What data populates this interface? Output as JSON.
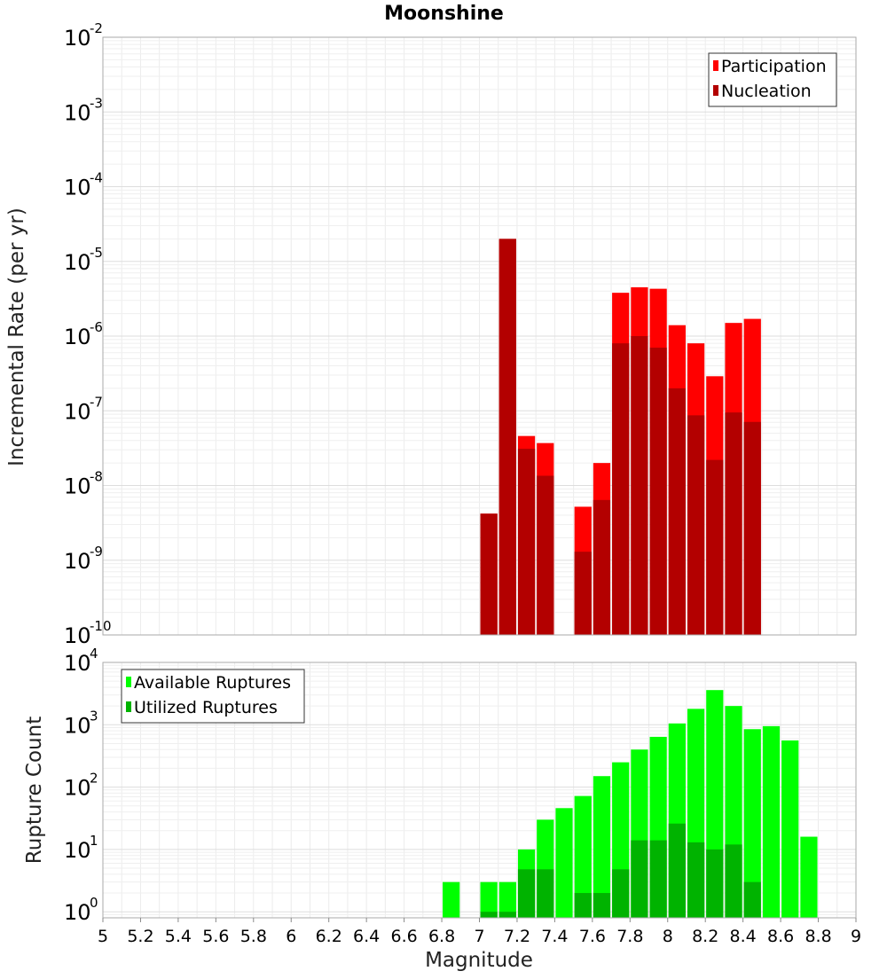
{
  "chart_data": [
    {
      "type": "bar",
      "title": "Moonshine",
      "ylabel": "Incremental Rate (per yr)",
      "xlabel": "",
      "xlim": [
        5,
        9
      ],
      "ylim": [
        1e-10,
        0.01
      ],
      "yscale": "log",
      "grid": true,
      "legend_position": "top-right",
      "bin_width": 0.1,
      "y_ticks": [
        {
          "base": "10",
          "exp": "-10"
        },
        {
          "base": "10",
          "exp": "-9"
        },
        {
          "base": "10",
          "exp": "-8"
        },
        {
          "base": "10",
          "exp": "-7"
        },
        {
          "base": "10",
          "exp": "-6"
        },
        {
          "base": "10",
          "exp": "-5"
        },
        {
          "base": "10",
          "exp": "-4"
        },
        {
          "base": "10",
          "exp": "-3"
        },
        {
          "base": "10",
          "exp": "-2"
        }
      ],
      "series": [
        {
          "name": "Participation",
          "color": "#ff0000",
          "points": [
            [
              7.05,
              4.2e-09
            ],
            [
              7.15,
              2e-05
            ],
            [
              7.25,
              4.6e-08
            ],
            [
              7.35,
              3.7e-08
            ],
            [
              7.55,
              5.2e-09
            ],
            [
              7.65,
              2e-08
            ],
            [
              7.75,
              3.8e-06
            ],
            [
              7.85,
              4.5e-06
            ],
            [
              7.95,
              4.3e-06
            ],
            [
              8.05,
              1.4e-06
            ],
            [
              8.15,
              8e-07
            ],
            [
              8.25,
              2.9e-07
            ],
            [
              8.35,
              1.5e-06
            ],
            [
              8.45,
              1.7e-06
            ]
          ]
        },
        {
          "name": "Nucleation",
          "color": "#b30000",
          "points": [
            [
              7.05,
              4.2e-09
            ],
            [
              7.15,
              2e-05
            ],
            [
              7.25,
              3.1e-08
            ],
            [
              7.35,
              1.35e-08
            ],
            [
              7.55,
              1.3e-09
            ],
            [
              7.65,
              6.4e-09
            ],
            [
              7.75,
              8e-07
            ],
            [
              7.85,
              1e-06
            ],
            [
              7.95,
              7e-07
            ],
            [
              8.05,
              2e-07
            ],
            [
              8.15,
              8.7e-08
            ],
            [
              8.25,
              2.2e-08
            ],
            [
              8.35,
              9.5e-08
            ],
            [
              8.45,
              7.1e-08
            ]
          ]
        }
      ]
    },
    {
      "type": "bar",
      "title": "",
      "ylabel": "Rupture Count",
      "xlabel": "Magnitude",
      "xlim": [
        5,
        9
      ],
      "ylim": [
        0.8,
        10000
      ],
      "yscale": "log",
      "grid": true,
      "legend_position": "top-left",
      "bin_width": 0.1,
      "x_ticks": [
        "5",
        "5.2",
        "5.4",
        "5.6",
        "5.8",
        "6",
        "6.2",
        "6.4",
        "6.6",
        "6.8",
        "7",
        "7.2",
        "7.4",
        "7.6",
        "7.8",
        "8",
        "8.2",
        "8.4",
        "8.6",
        "8.8",
        "9"
      ],
      "y_ticks": [
        {
          "base": "10",
          "exp": "0"
        },
        {
          "base": "10",
          "exp": "1"
        },
        {
          "base": "10",
          "exp": "2"
        },
        {
          "base": "10",
          "exp": "3"
        },
        {
          "base": "10",
          "exp": "4"
        }
      ],
      "series": [
        {
          "name": "Available Ruptures",
          "color": "#00ff00",
          "points": [
            [
              6.85,
              3
            ],
            [
              7.05,
              3
            ],
            [
              7.15,
              3
            ],
            [
              7.25,
              10
            ],
            [
              7.35,
              30
            ],
            [
              7.45,
              46
            ],
            [
              7.55,
              72
            ],
            [
              7.65,
              150
            ],
            [
              7.75,
              250
            ],
            [
              7.85,
              400
            ],
            [
              7.95,
              640
            ],
            [
              8.05,
              1050
            ],
            [
              8.15,
              1800
            ],
            [
              8.25,
              3600
            ],
            [
              8.35,
              2000
            ],
            [
              8.45,
              850
            ],
            [
              8.55,
              950
            ],
            [
              8.65,
              560
            ],
            [
              8.75,
              16
            ]
          ]
        },
        {
          "name": "Utilized Ruptures",
          "color": "#00b300",
          "points": [
            [
              7.05,
              1
            ],
            [
              7.15,
              1
            ],
            [
              7.25,
              4.8
            ],
            [
              7.35,
              4.8
            ],
            [
              7.55,
              2
            ],
            [
              7.65,
              2
            ],
            [
              7.75,
              4.8
            ],
            [
              7.85,
              14
            ],
            [
              7.95,
              14
            ],
            [
              8.05,
              26
            ],
            [
              8.15,
              13
            ],
            [
              8.25,
              10
            ],
            [
              8.35,
              12
            ],
            [
              8.45,
              3
            ]
          ]
        }
      ]
    }
  ]
}
